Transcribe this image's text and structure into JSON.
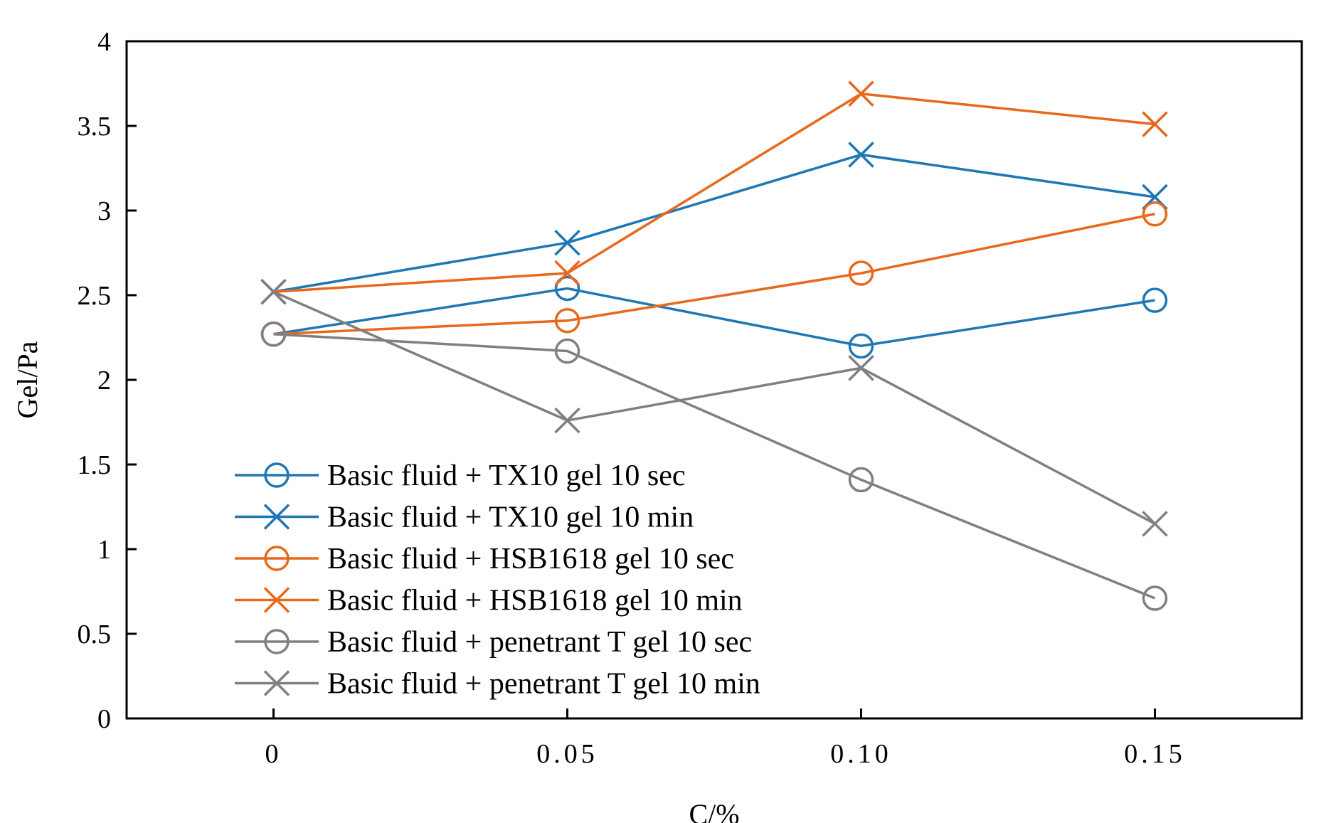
{
  "chart_data": {
    "type": "line",
    "title": "",
    "xlabel": "C/%",
    "ylabel": "Gel/Pa",
    "x_tick_labels": [
      "0",
      "0.05",
      "0.10",
      "0.15"
    ],
    "y_tick_labels": [
      "0",
      "0.5",
      "1",
      "1.5",
      "2",
      "2.5",
      "3",
      "3.5",
      "4"
    ],
    "x": [
      0,
      0.05,
      0.1,
      0.15
    ],
    "xlim": [
      -0.025,
      0.175
    ],
    "ylim": [
      0,
      4
    ],
    "grid": false,
    "legend_position": "bottom-left",
    "series": [
      {
        "name": "Basic fluid + TX10 gel 10 sec",
        "color": "#1f77b4",
        "marker": "circle",
        "values": [
          2.27,
          2.54,
          2.2,
          2.47
        ]
      },
      {
        "name": "Basic fluid + TX10 gel 10 min",
        "color": "#1f77b4",
        "marker": "x",
        "values": [
          2.52,
          2.81,
          3.33,
          3.08
        ]
      },
      {
        "name": "Basic fluid + HSB1618 gel 10 sec",
        "color": "#e8681c",
        "marker": "circle",
        "values": [
          2.27,
          2.35,
          2.63,
          2.98
        ]
      },
      {
        "name": "Basic fluid + HSB1618 gel 10 min",
        "color": "#e8681c",
        "marker": "x",
        "values": [
          2.52,
          2.63,
          3.69,
          3.51
        ]
      },
      {
        "name": "Basic fluid + penetrant T gel 10 sec",
        "color": "#808080",
        "marker": "circle",
        "values": [
          2.27,
          2.17,
          1.41,
          0.71
        ]
      },
      {
        "name": "Basic fluid + penetrant T gel 10 min",
        "color": "#808080",
        "marker": "x",
        "values": [
          2.52,
          1.76,
          2.07,
          1.15
        ]
      }
    ]
  }
}
